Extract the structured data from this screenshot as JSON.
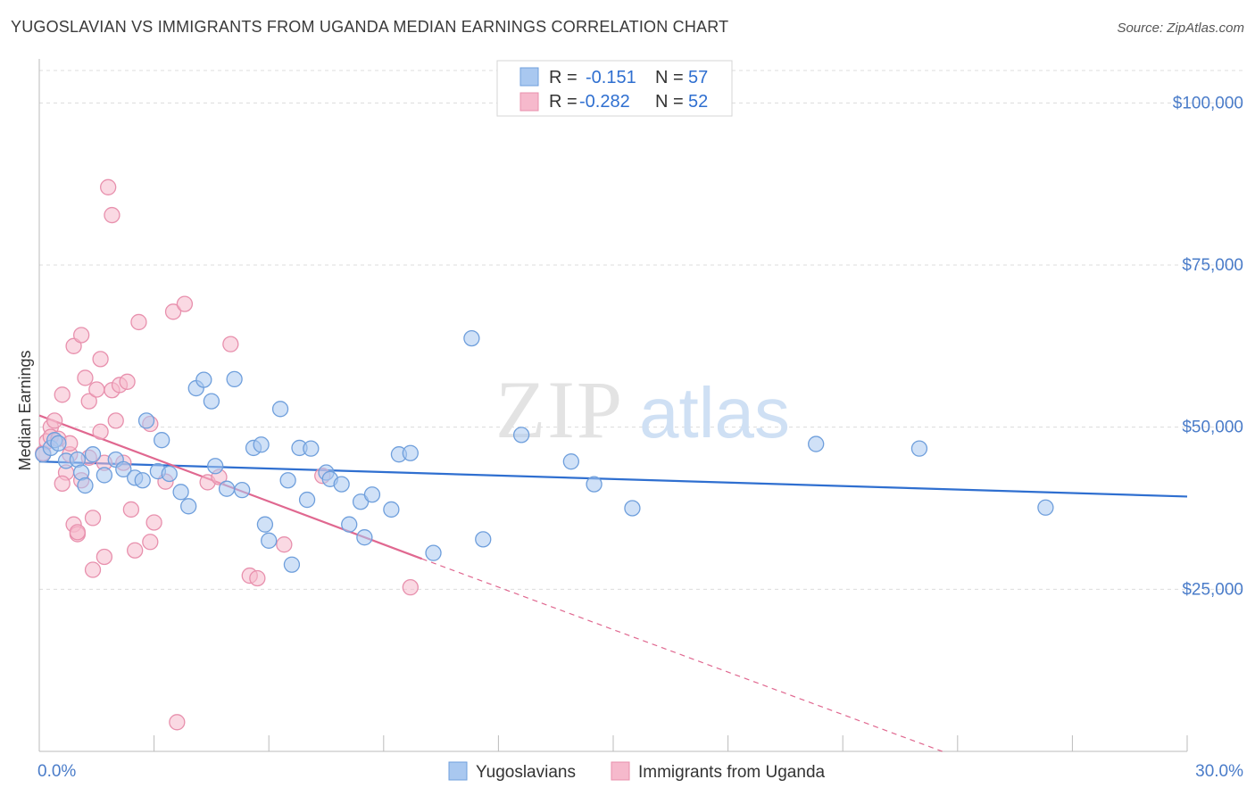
{
  "title": "YUGOSLAVIAN VS IMMIGRANTS FROM UGANDA MEDIAN EARNINGS CORRELATION CHART",
  "source": "Source: ZipAtlas.com",
  "watermark": {
    "zip": "ZIP",
    "atlas": "atlas"
  },
  "colors": {
    "blue_fill": "#a9c8f0",
    "blue_stroke": "#6f9fdc",
    "blue_line": "#2f6fd0",
    "pink_fill": "#f6b9cc",
    "pink_stroke": "#e890ad",
    "pink_line": "#e06890",
    "tick_text": "#4a7cc9",
    "grid": "#dcdcdc"
  },
  "legend": {
    "rows": [
      {
        "r_label": "R =",
        "r_value": "-0.151",
        "n_label": "N =",
        "n_value": "57"
      },
      {
        "r_label": "R =",
        "r_value": "-0.282",
        "n_label": "N =",
        "n_value": "52"
      }
    ]
  },
  "chart_data": {
    "type": "scatter",
    "ylabel": "Median Earnings",
    "xlim": [
      0,
      30
    ],
    "ylim": [
      0,
      105000
    ],
    "x_tick_labels": [
      "0.0%",
      "30.0%"
    ],
    "y_ticks": [
      25000,
      50000,
      75000,
      100000
    ],
    "y_tick_labels": [
      "$25,000",
      "$50,000",
      "$75,000",
      "$100,000"
    ],
    "grid": true,
    "series": [
      {
        "name": "Yugoslavians",
        "points": [
          [
            0.1,
            45800
          ],
          [
            0.3,
            46800
          ],
          [
            0.4,
            48000
          ],
          [
            0.5,
            47500
          ],
          [
            0.7,
            44800
          ],
          [
            1.0,
            45000
          ],
          [
            1.1,
            43000
          ],
          [
            1.2,
            41000
          ],
          [
            1.4,
            45800
          ],
          [
            1.7,
            42600
          ],
          [
            2.0,
            45000
          ],
          [
            2.2,
            43500
          ],
          [
            2.5,
            42200
          ],
          [
            2.7,
            41800
          ],
          [
            2.8,
            51000
          ],
          [
            3.1,
            43200
          ],
          [
            3.2,
            48000
          ],
          [
            3.4,
            42800
          ],
          [
            3.7,
            40000
          ],
          [
            3.9,
            37800
          ],
          [
            4.1,
            56000
          ],
          [
            4.3,
            57300
          ],
          [
            4.5,
            54000
          ],
          [
            4.6,
            44000
          ],
          [
            4.9,
            40500
          ],
          [
            5.1,
            57400
          ],
          [
            5.3,
            40300
          ],
          [
            5.6,
            46800
          ],
          [
            5.8,
            47300
          ],
          [
            5.9,
            35000
          ],
          [
            6.0,
            32500
          ],
          [
            6.3,
            52800
          ],
          [
            6.5,
            41800
          ],
          [
            6.6,
            28800
          ],
          [
            6.8,
            46800
          ],
          [
            7.0,
            38800
          ],
          [
            7.1,
            46700
          ],
          [
            7.5,
            43000
          ],
          [
            7.6,
            42000
          ],
          [
            7.9,
            41200
          ],
          [
            8.1,
            35000
          ],
          [
            8.4,
            38500
          ],
          [
            8.5,
            33000
          ],
          [
            8.7,
            39600
          ],
          [
            9.2,
            37300
          ],
          [
            9.4,
            45800
          ],
          [
            9.7,
            46000
          ],
          [
            10.3,
            30600
          ],
          [
            11.3,
            63700
          ],
          [
            11.6,
            32700
          ],
          [
            12.6,
            48800
          ],
          [
            13.9,
            44700
          ],
          [
            14.5,
            41200
          ],
          [
            15.5,
            37500
          ],
          [
            20.3,
            47400
          ],
          [
            23.0,
            46700
          ],
          [
            26.3,
            37600
          ]
        ],
        "trend": {
          "x0": 0.0,
          "y0": 44700,
          "x1": 30.0,
          "y1": 39300
        }
      },
      {
        "name": "Immigrants from Uganda",
        "points": [
          [
            0.1,
            46000
          ],
          [
            0.2,
            47800
          ],
          [
            0.3,
            50000
          ],
          [
            0.3,
            48500
          ],
          [
            0.4,
            51000
          ],
          [
            0.5,
            48200
          ],
          [
            0.6,
            55000
          ],
          [
            0.7,
            43000
          ],
          [
            0.6,
            41300
          ],
          [
            0.8,
            45800
          ],
          [
            0.8,
            47500
          ],
          [
            0.9,
            62500
          ],
          [
            0.9,
            35000
          ],
          [
            1.0,
            33500
          ],
          [
            1.0,
            33800
          ],
          [
            1.1,
            41800
          ],
          [
            1.1,
            64200
          ],
          [
            1.2,
            57600
          ],
          [
            1.3,
            45300
          ],
          [
            1.3,
            54000
          ],
          [
            1.4,
            36000
          ],
          [
            1.4,
            28000
          ],
          [
            1.5,
            55800
          ],
          [
            1.6,
            60500
          ],
          [
            1.6,
            49300
          ],
          [
            1.7,
            30000
          ],
          [
            1.7,
            44500
          ],
          [
            1.8,
            87000
          ],
          [
            1.9,
            82700
          ],
          [
            1.9,
            55700
          ],
          [
            2.0,
            51000
          ],
          [
            2.1,
            56500
          ],
          [
            2.2,
            44500
          ],
          [
            2.3,
            57000
          ],
          [
            2.4,
            37300
          ],
          [
            2.5,
            31000
          ],
          [
            2.6,
            66200
          ],
          [
            2.9,
            50500
          ],
          [
            2.9,
            32300
          ],
          [
            3.0,
            35300
          ],
          [
            3.3,
            41600
          ],
          [
            3.5,
            67800
          ],
          [
            3.6,
            4500
          ],
          [
            3.8,
            69000
          ],
          [
            4.4,
            41500
          ],
          [
            4.7,
            42300
          ],
          [
            5.0,
            62800
          ],
          [
            5.5,
            27100
          ],
          [
            5.7,
            26700
          ],
          [
            6.4,
            31900
          ],
          [
            7.4,
            42500
          ],
          [
            9.7,
            25300
          ]
        ],
        "trend": {
          "x0": 0.0,
          "y0": 51800,
          "x1": 10.0,
          "y1": 29700
        },
        "trend_dashed": {
          "x0": 10.0,
          "y0": 29700,
          "x1": 23.6,
          "y1": 0
        }
      }
    ]
  }
}
